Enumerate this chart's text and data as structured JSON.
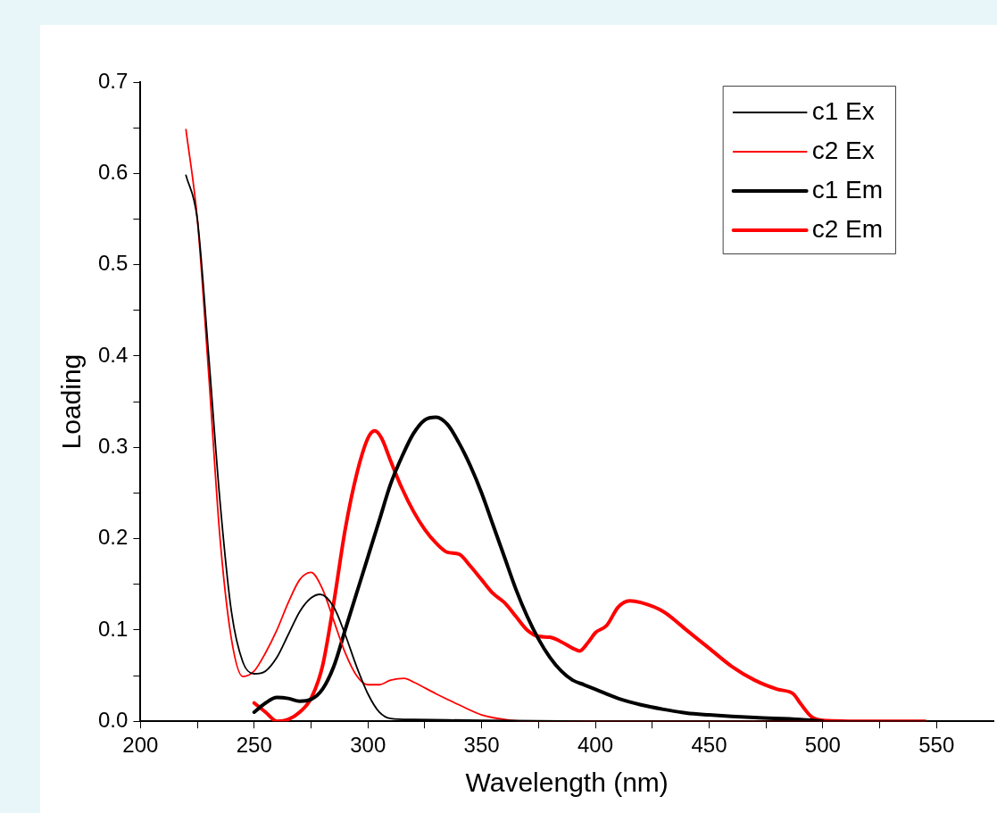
{
  "chart_data": {
    "type": "line",
    "xlabel": "Wavelength (nm)",
    "ylabel": "Loading",
    "xlim": [
      200,
      575
    ],
    "ylim": [
      0,
      0.7
    ],
    "xticks": [
      200,
      {
        "value": 225,
        "label": null
      },
      250,
      {
        "value": 275,
        "label": null
      },
      300,
      {
        "value": 325,
        "label": null
      },
      350,
      {
        "value": 375,
        "label": null
      },
      400,
      {
        "value": 425,
        "label": null
      },
      450,
      {
        "value": 475,
        "label": null
      },
      500,
      {
        "value": 525,
        "label": null
      },
      550
    ],
    "yticks": [
      {
        "value": 0,
        "label": "0.0"
      },
      {
        "value": 0.05,
        "label": null
      },
      0.1,
      {
        "value": 0.15,
        "label": null
      },
      0.2,
      {
        "value": 0.25,
        "label": null
      },
      0.3,
      {
        "value": 0.35,
        "label": null
      },
      0.4,
      {
        "value": 0.45,
        "label": null
      },
      0.5,
      {
        "value": 0.55,
        "label": null
      },
      0.6,
      {
        "value": 0.65,
        "label": null
      },
      0.7
    ],
    "grid": false,
    "legend": "top right",
    "marker": "none",
    "line_style": "solid",
    "series": [
      {
        "name": "c1 Ex",
        "color": "#000000",
        "x": [
          220,
          225,
          230,
          235,
          240,
          245,
          250,
          255,
          260,
          265,
          270,
          275,
          279,
          285,
          290,
          295,
          300,
          305,
          310,
          320,
          350,
          400,
          550
        ],
        "values": [
          0.598,
          0.55,
          0.4,
          0.24,
          0.12,
          0.065,
          0.052,
          0.055,
          0.07,
          0.095,
          0.12,
          0.135,
          0.139,
          0.125,
          0.095,
          0.06,
          0.03,
          0.01,
          0.003,
          0.002,
          0.001,
          0,
          0
        ]
      },
      {
        "name": "c2 Ex",
        "color": "#ff0000",
        "x": [
          220,
          225,
          230,
          235,
          240,
          245,
          250,
          255,
          260,
          265,
          270,
          275,
          280,
          285,
          290,
          295,
          300,
          305,
          310,
          316,
          320,
          330,
          340,
          350,
          360,
          370,
          545
        ],
        "values": [
          0.648,
          0.55,
          0.38,
          0.2,
          0.09,
          0.049,
          0.055,
          0.075,
          0.1,
          0.13,
          0.155,
          0.163,
          0.145,
          0.11,
          0.075,
          0.05,
          0.04,
          0.04,
          0.045,
          0.047,
          0.043,
          0.03,
          0.018,
          0.007,
          0.002,
          0,
          0
        ]
      },
      {
        "name": "c1 Em",
        "color": "#000000",
        "x": [
          250,
          255,
          260,
          265,
          270,
          275,
          280,
          285,
          290,
          295,
          300,
          305,
          310,
          315,
          320,
          325,
          330,
          335,
          340,
          345,
          350,
          355,
          360,
          365,
          370,
          375,
          380,
          385,
          390,
          395,
          400,
          410,
          420,
          430,
          440,
          450,
          470,
          490,
          500
        ],
        "values": [
          0.01,
          0.02,
          0.026,
          0.025,
          0.022,
          0.024,
          0.035,
          0.06,
          0.1,
          0.14,
          0.18,
          0.22,
          0.26,
          0.29,
          0.315,
          0.33,
          0.333,
          0.325,
          0.305,
          0.28,
          0.25,
          0.215,
          0.18,
          0.145,
          0.115,
          0.09,
          0.07,
          0.055,
          0.045,
          0.04,
          0.035,
          0.025,
          0.018,
          0.013,
          0.009,
          0.007,
          0.004,
          0.002,
          0
        ]
      },
      {
        "name": "c2 Em",
        "color": "#ff0000",
        "x": [
          250,
          255,
          260,
          265,
          270,
          275,
          280,
          285,
          290,
          295,
          300,
          303,
          306,
          310,
          315,
          320,
          325,
          330,
          335,
          340,
          345,
          350,
          355,
          360,
          365,
          370,
          375,
          380,
          385,
          390,
          393,
          397,
          400,
          405,
          410,
          415,
          420,
          430,
          440,
          450,
          460,
          470,
          480,
          487,
          490,
          495,
          500,
          520,
          545
        ],
        "values": [
          0.02,
          0.01,
          0,
          0.002,
          0.01,
          0.025,
          0.06,
          0.13,
          0.21,
          0.27,
          0.31,
          0.318,
          0.31,
          0.285,
          0.255,
          0.23,
          0.21,
          0.195,
          0.185,
          0.183,
          0.17,
          0.155,
          0.14,
          0.13,
          0.115,
          0.1,
          0.093,
          0.092,
          0.087,
          0.08,
          0.077,
          0.087,
          0.097,
          0.105,
          0.125,
          0.132,
          0.13,
          0.12,
          0.1,
          0.08,
          0.06,
          0.045,
          0.035,
          0.03,
          0.02,
          0.005,
          0.001,
          0,
          0
        ]
      }
    ]
  }
}
